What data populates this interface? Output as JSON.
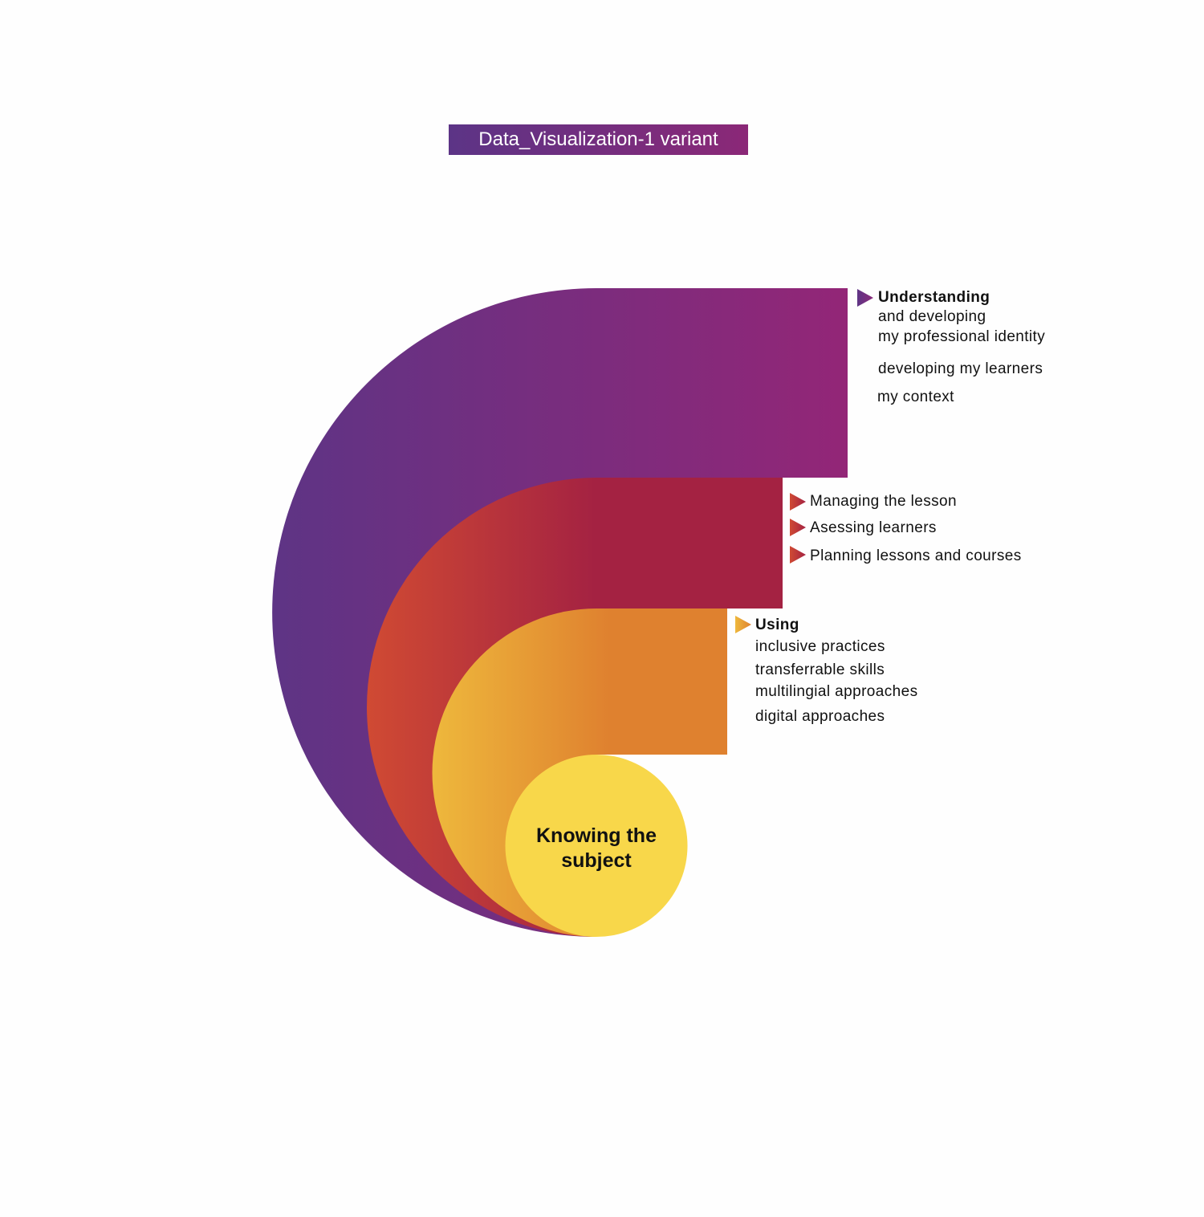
{
  "title": "Data_Visualization-1 variant",
  "center": {
    "line1": "Knowing the",
    "line2": "subject"
  },
  "bands": {
    "understanding": {
      "heading": "Understanding",
      "lines": [
        "and developing",
        "my professional identity",
        "developing my learners",
        "my context"
      ],
      "colors": [
        "#5e3485",
        "#932677"
      ]
    },
    "managing": {
      "lines": [
        "Managing the lesson",
        "Asessing learners",
        "Planning lessons and courses"
      ],
      "colors": [
        "#d04a33",
        "#a42242"
      ]
    },
    "using": {
      "heading": "Using",
      "lines": [
        "inclusive practices",
        "transferrable skills",
        "multilingial approaches",
        "digital approaches"
      ],
      "colors": [
        "#eeb83c",
        "#df812f"
      ]
    },
    "core": {
      "color": "#f8d74a"
    }
  }
}
